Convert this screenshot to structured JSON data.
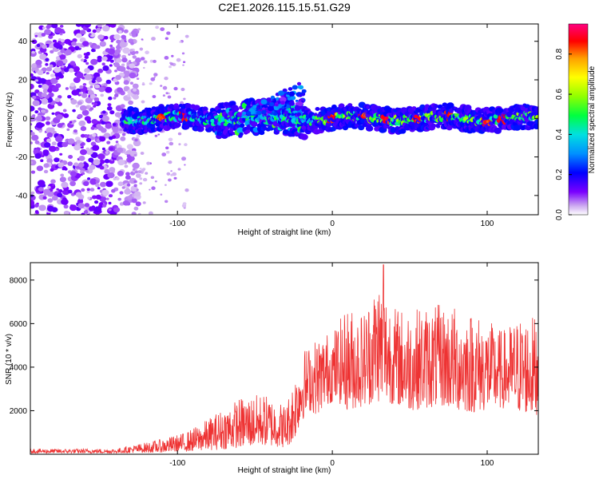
{
  "title": "C2E1.2026.115.15.51.G29",
  "chart_data": [
    {
      "type": "heatmap",
      "name": "spectrogram",
      "xlabel": "Height of straight line (km)",
      "ylabel": "Frequency (Hz)",
      "xlim": [
        -195,
        133
      ],
      "ylim": [
        -50,
        49
      ],
      "xticks": [
        -100,
        0,
        100
      ],
      "yticks": [
        -40,
        -20,
        0,
        20,
        40
      ],
      "colorbar": {
        "label": "Normalized spectral amplitude",
        "range": [
          0,
          0.95
        ],
        "ticks": [
          0.0,
          0.2,
          0.4,
          0.6,
          0.8
        ]
      },
      "features": [
        {
          "kind": "noise",
          "x_range": [
            -195,
            -125
          ],
          "y_range": [
            -50,
            49
          ]
        },
        {
          "kind": "signal_band",
          "x_range": [
            -135,
            133
          ],
          "center_freq": 0,
          "half_width": 6
        },
        {
          "kind": "spread",
          "x_range": [
            -75,
            -18
          ],
          "y_range": [
            -10,
            22
          ]
        },
        {
          "kind": "peak",
          "x": [
            -110,
            -95,
            0,
            20,
            35,
            55,
            75,
            100,
            110
          ]
        }
      ]
    },
    {
      "type": "line",
      "name": "snr",
      "xlabel": "Height of straight line (km)",
      "ylabel": "SNR (10 * v/v)",
      "xlim": [
        -195,
        133
      ],
      "ylim": [
        0,
        8800
      ],
      "xticks": [
        -100,
        0,
        100
      ],
      "yticks": [
        2000,
        4000,
        6000,
        8000
      ],
      "color": "#ee3333",
      "envelope": {
        "x": [
          -195,
          -140,
          -130,
          -110,
          -95,
          -85,
          -75,
          -60,
          -45,
          -30,
          -25,
          -20,
          -15,
          -10,
          -5,
          0,
          5,
          10,
          20,
          30,
          40,
          50,
          60,
          70,
          80,
          90,
          100,
          110,
          120,
          133
        ],
        "low": [
          50,
          50,
          60,
          80,
          120,
          160,
          200,
          300,
          400,
          300,
          600,
          1500,
          2000,
          1800,
          2200,
          2400,
          2300,
          2000,
          2200,
          2400,
          2300,
          2000,
          2100,
          2200,
          2000,
          1900,
          2000,
          2100,
          1900,
          1800
        ],
        "high": [
          250,
          250,
          400,
          700,
          1000,
          1400,
          1900,
          2600,
          2800,
          2300,
          3500,
          4800,
          5000,
          5400,
          5600,
          5700,
          6200,
          6800,
          6600,
          8300,
          6800,
          6700,
          6800,
          6900,
          6800,
          6600,
          6200,
          5700,
          6300,
          6400
        ]
      },
      "peaks": [
        {
          "x": 33,
          "y": 8700
        }
      ]
    }
  ]
}
